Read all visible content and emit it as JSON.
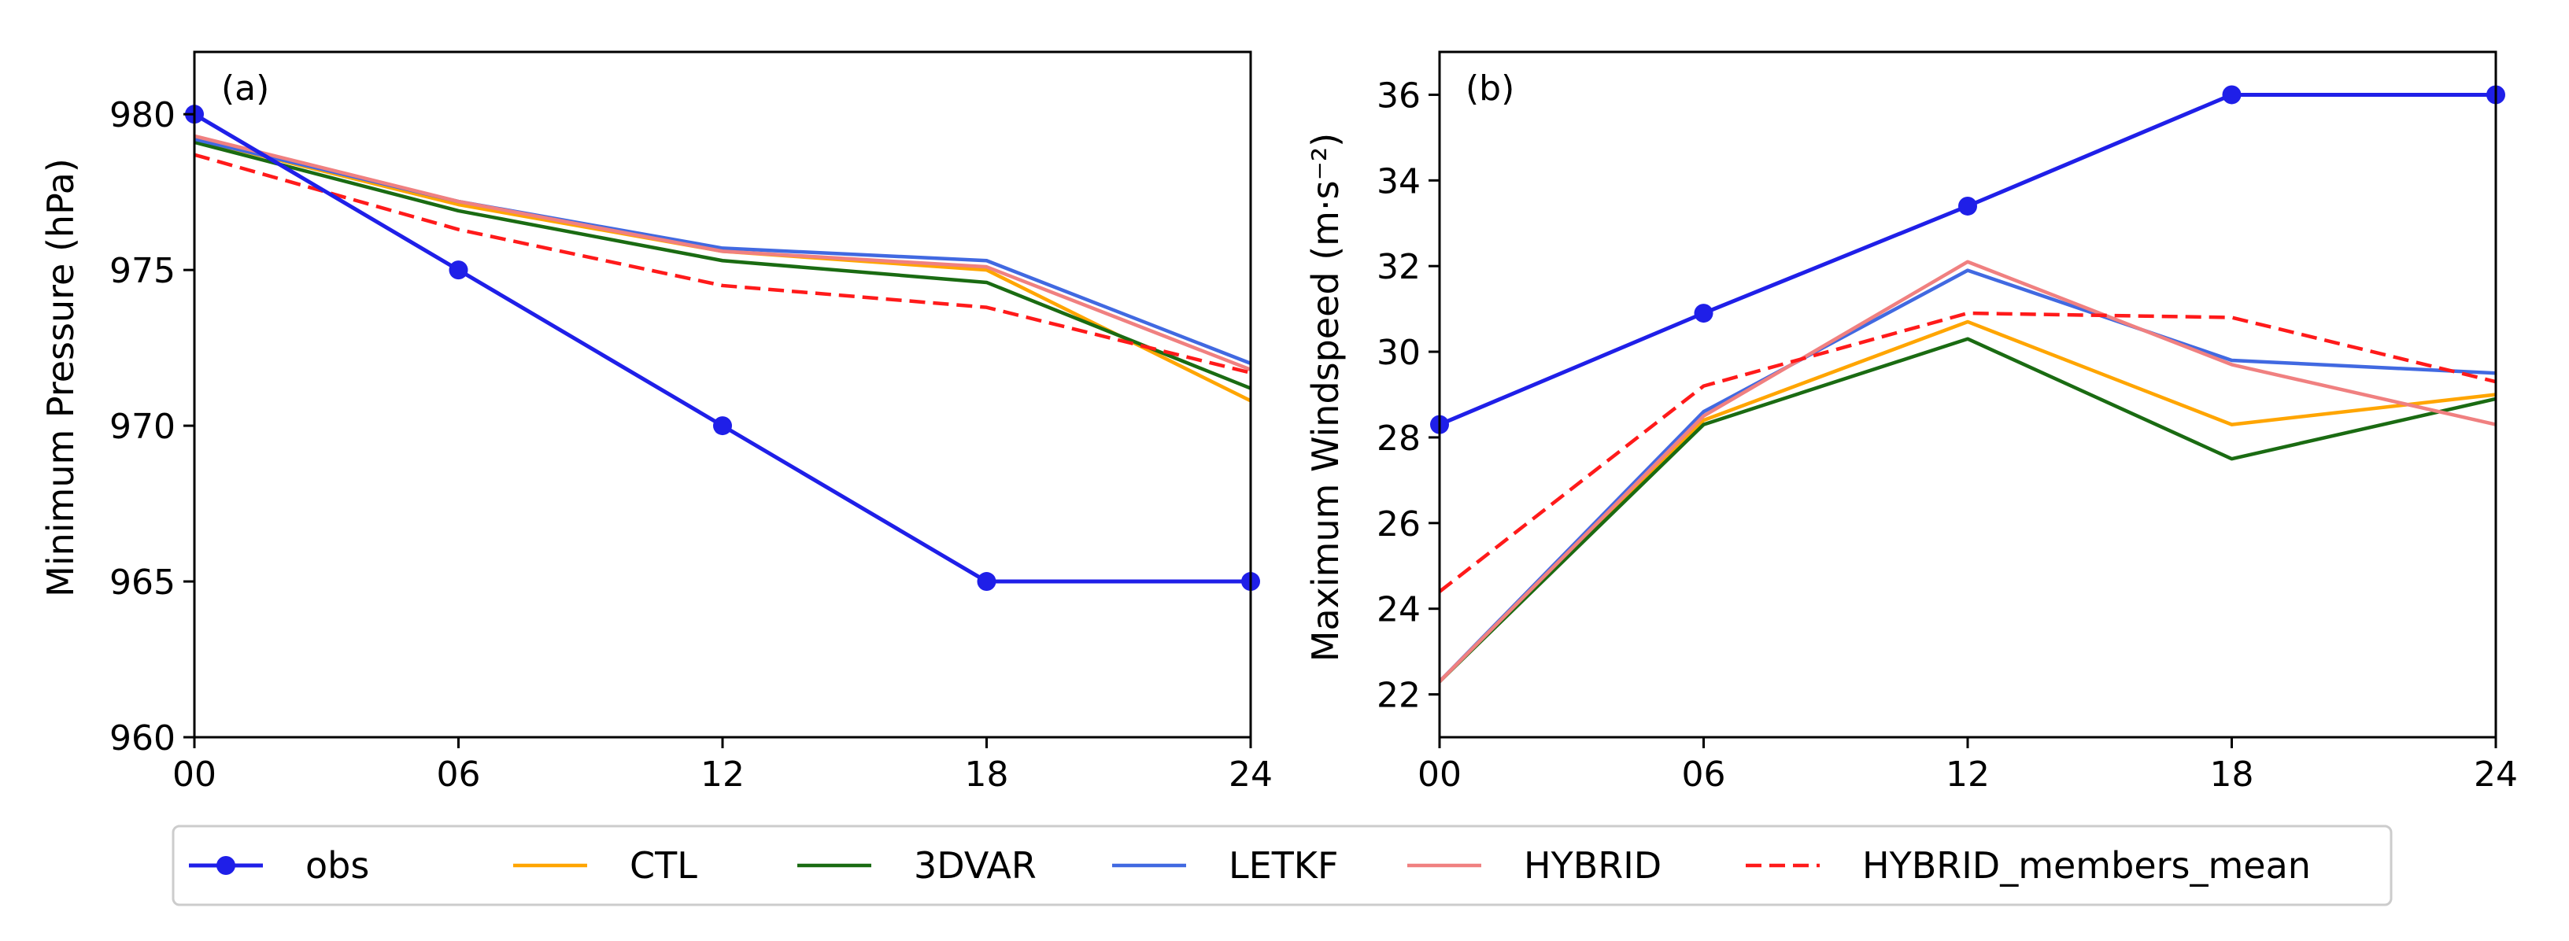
{
  "chart_data": [
    {
      "type": "line",
      "panel_label": "(a)",
      "xlabel": "",
      "ylabel": "Minimum Pressure (hPa)",
      "x_ticks": [
        "00",
        "06",
        "12",
        "18",
        "24"
      ],
      "xlim": [
        0,
        24
      ],
      "ylim": [
        960,
        982
      ],
      "y_ticks": [
        960,
        965,
        970,
        975,
        980
      ],
      "grid": false,
      "x": [
        0,
        6,
        12,
        18,
        24
      ],
      "series": [
        {
          "name": "obs",
          "values": [
            980,
            975,
            970,
            965,
            965
          ]
        },
        {
          "name": "CTL",
          "values": [
            979.2,
            977.1,
            975.6,
            975.0,
            970.8
          ]
        },
        {
          "name": "3DVAR",
          "values": [
            979.1,
            976.9,
            975.3,
            974.6,
            971.2
          ]
        },
        {
          "name": "LETKF",
          "values": [
            979.2,
            977.2,
            975.7,
            975.3,
            972.0
          ]
        },
        {
          "name": "HYBRID",
          "values": [
            979.3,
            977.2,
            975.6,
            975.1,
            971.8
          ]
        },
        {
          "name": "HYBRID_members_mean",
          "values": [
            978.7,
            976.3,
            974.5,
            973.8,
            971.7
          ]
        }
      ]
    },
    {
      "type": "line",
      "panel_label": "(b)",
      "xlabel": "",
      "ylabel": "Maximum Windspeed (m·s⁻²)",
      "x_ticks": [
        "00",
        "06",
        "12",
        "18",
        "24"
      ],
      "xlim": [
        0,
        24
      ],
      "ylim": [
        21,
        37
      ],
      "y_ticks": [
        22,
        24,
        26,
        28,
        30,
        32,
        34,
        36
      ],
      "grid": false,
      "x": [
        0,
        6,
        12,
        18,
        24
      ],
      "series": [
        {
          "name": "obs",
          "values": [
            28.3,
            30.9,
            33.4,
            36.0,
            36.0
          ]
        },
        {
          "name": "CTL",
          "values": [
            22.3,
            28.4,
            30.7,
            28.3,
            29.0
          ]
        },
        {
          "name": "3DVAR",
          "values": [
            22.3,
            28.3,
            30.3,
            27.5,
            28.9
          ]
        },
        {
          "name": "LETKF",
          "values": [
            22.3,
            28.6,
            31.9,
            29.8,
            29.5
          ]
        },
        {
          "name": "HYBRID",
          "values": [
            22.3,
            28.5,
            32.1,
            29.7,
            28.3
          ]
        },
        {
          "name": "HYBRID_members_mean",
          "values": [
            24.4,
            29.2,
            30.9,
            30.8,
            29.3
          ]
        }
      ]
    }
  ],
  "legend": {
    "placement": "bottom-center",
    "entries": [
      {
        "name": "obs",
        "label": "obs"
      },
      {
        "name": "CTL",
        "label": "CTL"
      },
      {
        "name": "3DVAR",
        "label": "3DVAR"
      },
      {
        "name": "LETKF",
        "label": "LETKF"
      },
      {
        "name": "HYBRID",
        "label": "HYBRID"
      },
      {
        "name": "HYBRID_members_mean",
        "label": "HYBRID_members_mean"
      }
    ]
  },
  "series_styles": {
    "obs": {
      "color": "#1f1fe8",
      "dashed": false,
      "markers": true
    },
    "CTL": {
      "color": "#ffa500",
      "dashed": false,
      "markers": false
    },
    "3DVAR": {
      "color": "#1a6b12",
      "dashed": false,
      "markers": false
    },
    "LETKF": {
      "color": "#4169e1",
      "dashed": false,
      "markers": false
    },
    "HYBRID": {
      "color": "#f08080",
      "dashed": false,
      "markers": false
    },
    "HYBRID_members_mean": {
      "color": "#ff1a1a",
      "dashed": true,
      "markers": false
    }
  }
}
